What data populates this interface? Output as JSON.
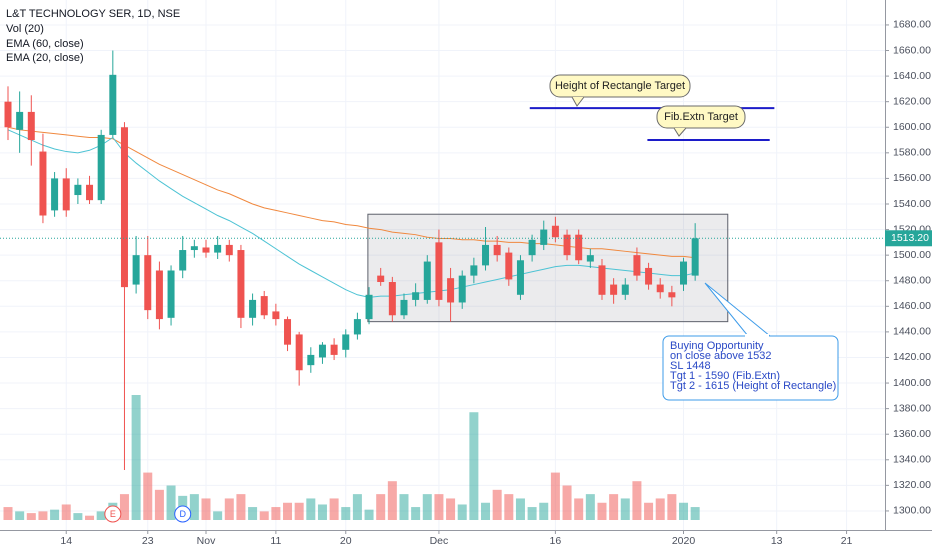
{
  "chart_data": {
    "type": "candlestick",
    "title": "L&T TECHNOLOGY SER, 1D, NSE",
    "indicators": [
      "Vol (20)",
      "EMA (60, close)",
      "EMA (20, close)"
    ],
    "x": [
      0,
      1,
      2,
      3,
      4,
      5,
      6,
      7,
      8,
      9,
      10,
      11,
      12,
      13,
      14,
      15,
      16,
      17,
      18,
      19,
      20,
      21,
      22,
      23,
      24,
      25,
      26,
      27,
      28,
      29,
      30,
      31,
      32,
      33,
      34,
      35,
      36,
      37,
      38,
      39,
      40,
      41,
      42,
      43,
      44,
      45,
      46,
      47,
      48,
      49,
      50,
      51,
      52,
      53,
      54,
      55,
      56,
      57,
      58,
      59
    ],
    "open": [
      1620,
      1598,
      1612,
      1581,
      1535,
      1560,
      1547,
      1555,
      1543,
      1594,
      1600,
      1477,
      1500,
      1488,
      1451,
      1488,
      1504,
      1506,
      1502,
      1508,
      1504,
      1451,
      1468,
      1456,
      1450,
      1438,
      1414,
      1420,
      1430,
      1426,
      1438,
      1450,
      1484,
      1479,
      1453,
      1465,
      1465,
      1510,
      1482,
      1463,
      1484,
      1492,
      1508,
      1502,
      1469,
      1500,
      1508,
      1523,
      1516,
      1516,
      1495,
      1492,
      1477,
      1469,
      1500,
      1490,
      1477,
      1471,
      1477,
      1484
    ],
    "high": [
      1632,
      1628,
      1625,
      1595,
      1565,
      1568,
      1560,
      1562,
      1598,
      1660,
      1604,
      1515,
      1515,
      1495,
      1492,
      1515,
      1512,
      1512,
      1515,
      1512,
      1508,
      1470,
      1472,
      1462,
      1452,
      1440,
      1428,
      1432,
      1435,
      1442,
      1455,
      1475,
      1490,
      1483,
      1470,
      1478,
      1500,
      1520,
      1490,
      1488,
      1498,
      1522,
      1515,
      1506,
      1500,
      1516,
      1527,
      1530,
      1520,
      1520,
      1505,
      1497,
      1482,
      1482,
      1506,
      1494,
      1482,
      1476,
      1498,
      1525
    ],
    "low": [
      1590,
      1580,
      1570,
      1525,
      1530,
      1530,
      1540,
      1540,
      1540,
      1592,
      1332,
      1470,
      1450,
      1442,
      1445,
      1482,
      1498,
      1498,
      1497,
      1495,
      1443,
      1445,
      1450,
      1445,
      1425,
      1398,
      1408,
      1415,
      1418,
      1420,
      1434,
      1446,
      1476,
      1448,
      1450,
      1460,
      1462,
      1460,
      1448,
      1458,
      1478,
      1488,
      1495,
      1476,
      1465,
      1495,
      1504,
      1510,
      1496,
      1493,
      1490,
      1465,
      1462,
      1465,
      1480,
      1473,
      1466,
      1460,
      1472,
      1480
    ],
    "close": [
      1600,
      1612,
      1590,
      1531,
      1560,
      1535,
      1555,
      1543,
      1594,
      1641,
      1475,
      1500,
      1457,
      1450,
      1488,
      1504,
      1507,
      1502,
      1508,
      1500,
      1451,
      1465,
      1453,
      1450,
      1430,
      1410,
      1422,
      1430,
      1422,
      1438,
      1450,
      1469,
      1479,
      1453,
      1465,
      1471,
      1495,
      1465,
      1463,
      1484,
      1492,
      1508,
      1500,
      1481,
      1496,
      1512,
      1520,
      1514,
      1500,
      1496,
      1500,
      1469,
      1469,
      1477,
      1484,
      1477,
      1471,
      1467,
      1495,
      1513.2
    ],
    "volume": [
      15,
      10,
      8,
      10,
      12,
      18,
      8,
      5,
      10,
      20,
      30,
      145,
      55,
      35,
      40,
      28,
      30,
      25,
      10,
      25,
      30,
      15,
      10,
      15,
      20,
      20,
      25,
      18,
      25,
      15,
      30,
      12,
      30,
      45,
      30,
      15,
      30,
      30,
      25,
      18,
      125,
      20,
      35,
      30,
      25,
      15,
      20,
      55,
      40,
      25,
      30,
      20,
      30,
      25,
      45,
      20,
      25,
      30,
      20,
      15
    ],
    "series": [
      {
        "name": "EMA (60, close)",
        "color": "#f0883e",
        "values": [
          1600,
          1598,
          1597,
          1596,
          1595,
          1594,
          1593,
          1592,
          1592,
          1591,
          1586,
          1581,
          1576,
          1571,
          1567,
          1563,
          1559,
          1555,
          1551,
          1548,
          1544,
          1540,
          1537,
          1535,
          1533,
          1531,
          1529,
          1527,
          1526,
          1524,
          1523,
          1521,
          1520,
          1518,
          1517,
          1516,
          1514,
          1513,
          1513,
          1512,
          1512,
          1511,
          1511,
          1510,
          1510,
          1509,
          1509,
          1508,
          1507,
          1506,
          1505,
          1505,
          1504,
          1503,
          1502,
          1501,
          1500,
          1499,
          1499,
          1498
        ]
      },
      {
        "name": "EMA (20, close)",
        "color": "#4dc3d4",
        "values": [
          1598,
          1594,
          1590,
          1586,
          1583,
          1581,
          1580,
          1582,
          1586,
          1592,
          1580,
          1572,
          1565,
          1558,
          1552,
          1546,
          1541,
          1536,
          1531,
          1527,
          1522,
          1517,
          1511,
          1505,
          1499,
          1493,
          1488,
          1483,
          1478,
          1473,
          1469,
          1467,
          1468,
          1468,
          1469,
          1470,
          1471,
          1472,
          1473,
          1475,
          1477,
          1479,
          1481,
          1483,
          1485,
          1487,
          1489,
          1491,
          1492,
          1492,
          1491,
          1490,
          1489,
          1488,
          1487,
          1486,
          1485,
          1484,
          1484,
          1486
        ]
      }
    ],
    "up_color": "#26a69a",
    "down_color": "#ef5350",
    "xlim": [
      -0.687,
      75.3
    ],
    "ylim": [
      1285.1,
      1699.5
    ],
    "xticks": [
      {
        "value": 5,
        "label": "14"
      },
      {
        "value": 12,
        "label": "23"
      },
      {
        "value": 17,
        "label": "Nov"
      },
      {
        "value": 23,
        "label": "11"
      },
      {
        "value": 29,
        "label": "20"
      },
      {
        "value": 37,
        "label": "Dec"
      },
      {
        "value": 47,
        "label": "16"
      },
      {
        "value": 58,
        "label": "2020"
      },
      {
        "value": 66,
        "label": "13"
      },
      {
        "value": 72,
        "label": "21"
      }
    ],
    "yticks": [
      {
        "value": 1300,
        "label": "1300.00"
      },
      {
        "value": 1320,
        "label": "1320.00"
      },
      {
        "value": 1340,
        "label": "1340.00"
      },
      {
        "value": 1360,
        "label": "1360.00"
      },
      {
        "value": 1380,
        "label": "1380.00"
      },
      {
        "value": 1400,
        "label": "1400.00"
      },
      {
        "value": 1420,
        "label": "1420.00"
      },
      {
        "value": 1440,
        "label": "1440.00"
      },
      {
        "value": 1460,
        "label": "1460.00"
      },
      {
        "value": 1480,
        "label": "1480.00"
      },
      {
        "value": 1500,
        "label": "1500.00"
      },
      {
        "value": 1520,
        "label": "1520.00"
      },
      {
        "value": 1540,
        "label": "1540.00"
      },
      {
        "value": 1560,
        "label": "1560.00"
      },
      {
        "value": 1580,
        "label": "1580.00"
      },
      {
        "value": 1600,
        "label": "1600.00"
      },
      {
        "value": 1620,
        "label": "1620.00"
      },
      {
        "value": 1640,
        "label": "1640.00"
      },
      {
        "value": 1660,
        "label": "1660.00"
      },
      {
        "value": 1680,
        "label": "1680.00"
      }
    ],
    "last_price": {
      "value": 1513.2,
      "label": "1513.20"
    },
    "events": [
      {
        "label": "E",
        "x": 9
      },
      {
        "label": "D",
        "x": 15
      }
    ],
    "annotations": {
      "rectangle": {
        "x": [
          30.9,
          61.8
        ],
        "top": 1532,
        "bottom": 1448
      },
      "targets": [
        {
          "label": "Height of Rectangle Target",
          "value": 1615,
          "x": [
            44.8,
            65.8
          ]
        },
        {
          "label": "Fib.Extn Target",
          "value": 1590,
          "x": [
            54.9,
            65.4
          ]
        }
      ],
      "callout": [
        "Buying Opportunity",
        "on close above 1532",
        "SL 1448",
        "Tgt 1 - 1590 (Fib.Extn)",
        "Tgt 2 - 1615 (Height of Rectangle)"
      ]
    }
  }
}
